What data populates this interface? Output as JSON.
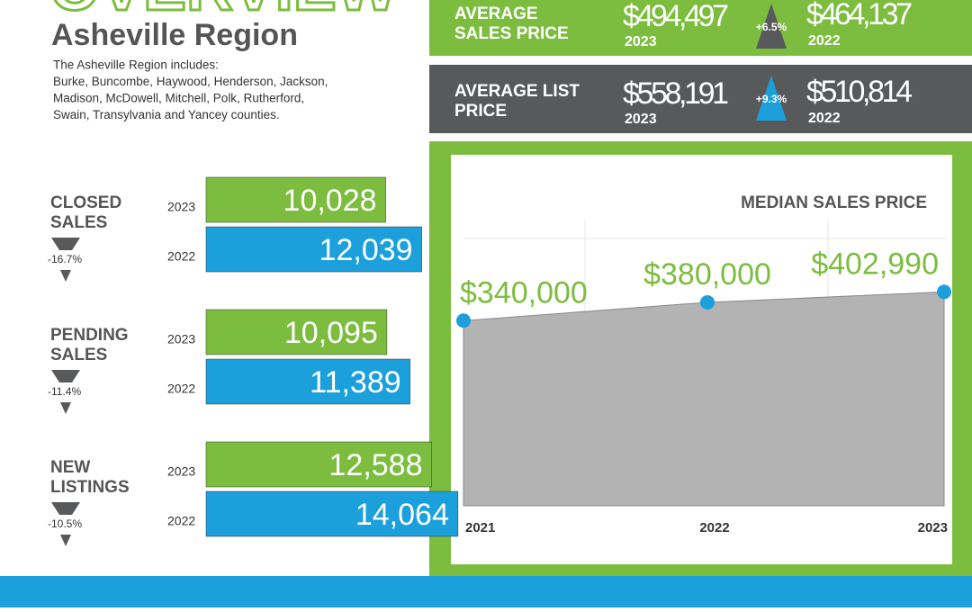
{
  "header": {
    "title": "OVERVIEW",
    "subtitle": "Asheville Region",
    "description_lines": [
      "The Asheville Region includes:",
      "Burke, Buncombe, Haywood, Henderson, Jackson,",
      "Madison, McDowell, Mitchell, Polk, Rutherford,",
      "Swain, Transylvania and Yancey counties."
    ]
  },
  "price_cards": [
    {
      "label_lines": [
        "AVERAGE",
        "SALES PRICE"
      ],
      "current": "$494,497",
      "current_year": "2023",
      "change": "+6.5%",
      "previous": "$464,137",
      "previous_year": "2022"
    },
    {
      "label_lines": [
        "AVERAGE LIST",
        "PRICE"
      ],
      "current": "$558,191",
      "current_year": "2023",
      "change": "+9.3%",
      "previous": "$510,814",
      "previous_year": "2022"
    }
  ],
  "stats": [
    {
      "label_lines": [
        "CLOSED",
        "SALES"
      ],
      "change": "-16.7%",
      "bars": [
        {
          "year": "2023",
          "value": 10028,
          "value_label": "10,028"
        },
        {
          "year": "2022",
          "value": 12039,
          "value_label": "12,039"
        }
      ]
    },
    {
      "label_lines": [
        "PENDING",
        "SALES"
      ],
      "change": "-11.4%",
      "bars": [
        {
          "year": "2023",
          "value": 10095,
          "value_label": "10,095"
        },
        {
          "year": "2022",
          "value": 11389,
          "value_label": "11,389"
        }
      ]
    },
    {
      "label_lines": [
        "NEW",
        "LISTINGS"
      ],
      "change": "-10.5%",
      "bars": [
        {
          "year": "2023",
          "value": 12588,
          "value_label": "12,588"
        },
        {
          "year": "2022",
          "value": 14064,
          "value_label": "14,064"
        }
      ]
    }
  ],
  "chart_data": {
    "type": "area",
    "title": "MEDIAN SALES PRICE",
    "categories": [
      "2021",
      "2022",
      "2023"
    ],
    "values": [
      340000,
      380000,
      402990
    ],
    "value_labels": [
      "$340,000",
      "$380,000",
      "$402,990"
    ],
    "color": "#b3b3b3",
    "marker_color": "#1ba0dc"
  }
}
